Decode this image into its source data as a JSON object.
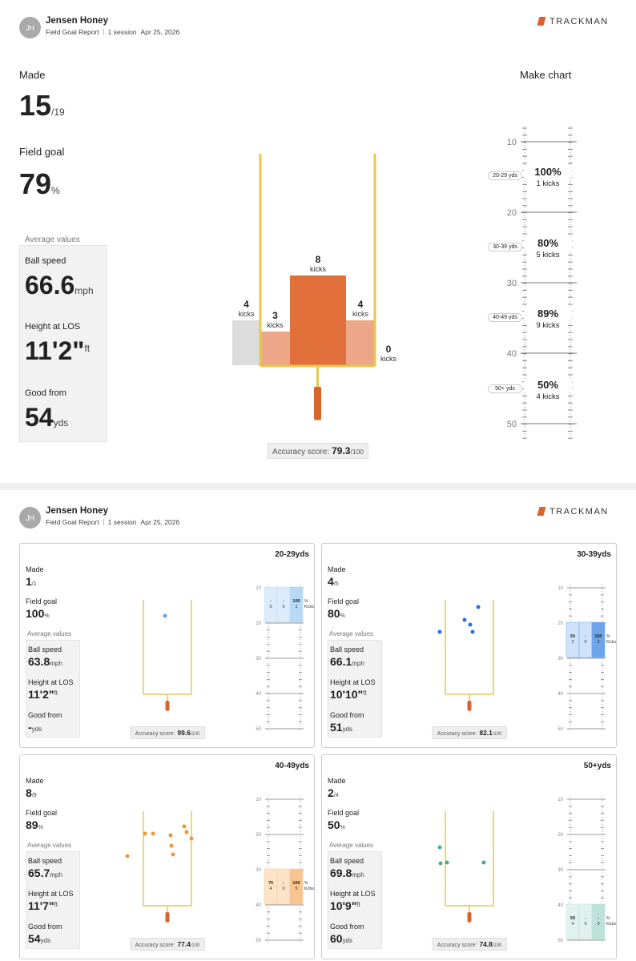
{
  "header": {
    "initials": "JH",
    "name": "Jensen Honey",
    "report": "Field Goal Report",
    "sessions": "1 session",
    "date": "Apr 25, 2026",
    "brand": "TRACKMAN"
  },
  "summary": {
    "made_label": "Made",
    "made": "15",
    "made_total": "/19",
    "fg_label": "Field goal",
    "fg": "79",
    "fg_unit": "%",
    "avg_label": "Average values",
    "ball_speed_label": "Ball speed",
    "ball_speed": "66.6",
    "ball_speed_unit": "mph",
    "height_label": "Height at LOS",
    "height": "11'2\"",
    "height_unit": "ft",
    "good_from_label": "Good from",
    "good_from": "54",
    "good_from_unit": "yds",
    "accuracy_label": "Accuracy score:",
    "accuracy": "79.3",
    "accuracy_max": "/100"
  },
  "goal_chart": {
    "kicks_label": "kicks",
    "bars": [
      {
        "kicks": 4
      },
      {
        "kicks": 3
      },
      {
        "kicks": 8
      },
      {
        "kicks": 4
      },
      {
        "kicks": 0
      }
    ]
  },
  "make_chart": {
    "title": "Make chart",
    "ticks": [
      10,
      20,
      30,
      40,
      50
    ],
    "rows": [
      {
        "range": "20-29 yds",
        "pct": "100%",
        "kicks": "1 kicks"
      },
      {
        "range": "30-39 yds",
        "pct": "80%",
        "kicks": "5 kicks"
      },
      {
        "range": "40-49 yds",
        "pct": "89%",
        "kicks": "9 kicks"
      },
      {
        "range": "50+ yds",
        "pct": "50%",
        "kicks": "4 kicks"
      }
    ]
  },
  "mini_legend": {
    "kicks": "Kicks"
  },
  "cards": [
    {
      "range": "20-29yds",
      "made": "1",
      "made_total": "/1",
      "fg": "100",
      "ball_speed": "63.8",
      "height": "11'2\"",
      "good_from": "-",
      "accuracy": "99.6",
      "color": "#5aa9e6",
      "light": "#dcecfb",
      "dark": "#b7d8f6",
      "columns": [
        {
          "pct": "-",
          "kicks": 0
        },
        {
          "pct": "-",
          "kicks": 0
        },
        {
          "pct": "100",
          "kicks": 1
        }
      ]
    },
    {
      "range": "30-39yds",
      "made": "4",
      "made_total": "/5",
      "fg": "80",
      "ball_speed": "66.1",
      "height": "10'10\"",
      "good_from": "51",
      "accuracy": "82.1",
      "color": "#2e6fd6",
      "light": "#cfe2fa",
      "dark": "#6fa3ea",
      "columns": [
        {
          "pct": "50",
          "kicks": 2
        },
        {
          "pct": "-",
          "kicks": 0
        },
        {
          "pct": "100",
          "kicks": 3
        }
      ]
    },
    {
      "range": "40-49yds",
      "made": "8",
      "made_total": "/9",
      "fg": "89",
      "ball_speed": "65.7",
      "height": "11'7\"",
      "good_from": "54",
      "accuracy": "77.4",
      "color": "#f0963c",
      "light": "#fde3c7",
      "dark": "#f8c48f",
      "columns": [
        {
          "pct": "75",
          "kicks": 4
        },
        {
          "pct": "-",
          "kicks": 0
        },
        {
          "pct": "100",
          "kicks": 5
        }
      ]
    },
    {
      "range": "50+yds",
      "made": "2",
      "made_total": "/4",
      "fg": "50",
      "ball_speed": "69.8",
      "height": "10'9\"",
      "good_from": "60",
      "accuracy": "74.8",
      "color": "#4aa79a",
      "light": "#e0f1ee",
      "dark": "#bfe1db",
      "columns": [
        {
          "pct": "50",
          "kicks": 4
        },
        {
          "pct": "-",
          "kicks": 0
        },
        {
          "pct": "-",
          "kicks": 0
        }
      ]
    }
  ]
}
